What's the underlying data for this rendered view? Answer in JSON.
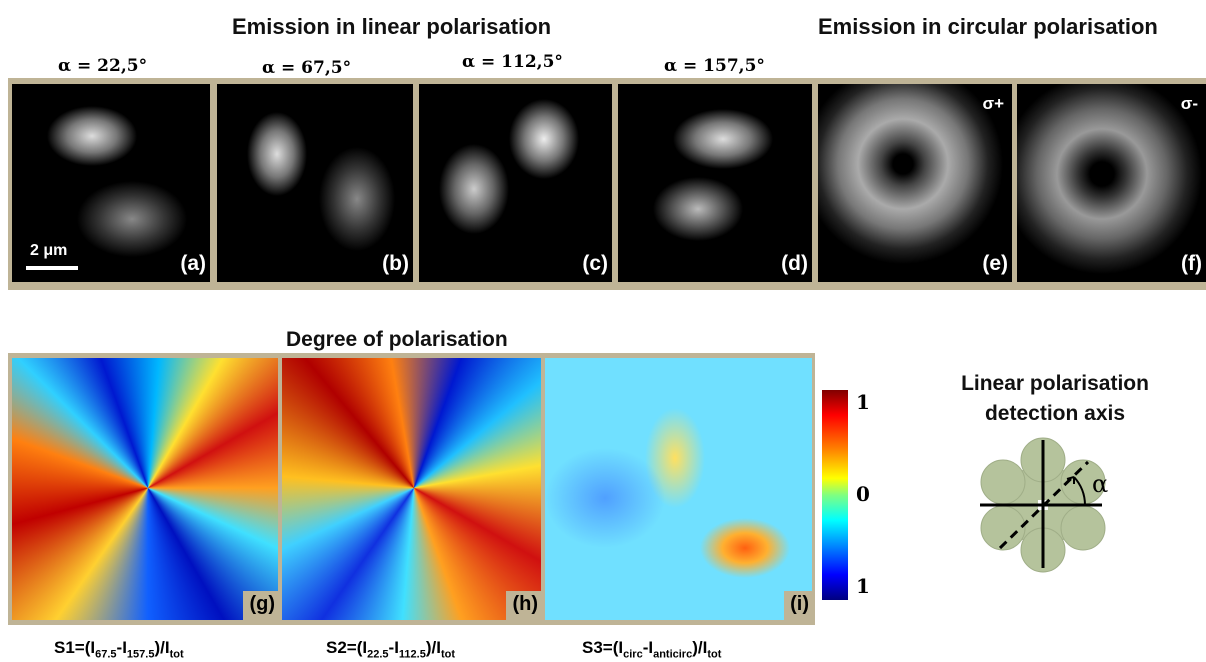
{
  "header": {
    "linear_title": "Emission in linear polarisation",
    "circular_title": "Emission in circular polarisation"
  },
  "top_panels": [
    {
      "angle": "α = 22,5°",
      "label": "(a)",
      "scale_bar": "2 μm"
    },
    {
      "angle": "α = 67,5°",
      "label": "(b)"
    },
    {
      "angle": "α = 112,5°",
      "label": "(c)"
    },
    {
      "angle": "α = 157,5°",
      "label": "(d)"
    },
    {
      "corner": "σ+",
      "label": "(e)"
    },
    {
      "corner": "σ-",
      "label": "(f)"
    }
  ],
  "bottom": {
    "title": "Degree of polarisation",
    "panels": [
      {
        "label": "(g)",
        "formula": [
          "S1=(I",
          "67.5",
          "-I",
          "157.5",
          ")/I",
          "tot"
        ]
      },
      {
        "label": "(h)",
        "formula": [
          "S2=(I",
          "22.5",
          "-I",
          "112.5",
          ")/I",
          "tot"
        ]
      },
      {
        "label": "(i)",
        "formula": [
          "S3=(I",
          "circ",
          "-I",
          "anticirc",
          ")/I",
          "tot"
        ]
      }
    ],
    "colorbar_labels": [
      "1",
      "0",
      "1"
    ]
  },
  "diagram": {
    "title_lines": [
      "Linear polarisation",
      "detection axis"
    ],
    "angle_symbol": "α"
  }
}
